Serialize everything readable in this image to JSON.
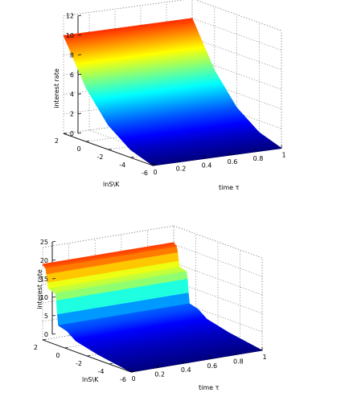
{
  "chart_data": [
    {
      "type": "surface",
      "xlabel": "time τ",
      "ylabel": "lnS\\K",
      "zlabel": "interest rate",
      "xlim": [
        0,
        1
      ],
      "ylim": [
        -6,
        2
      ],
      "zlim": [
        0,
        12
      ],
      "xticks": [
        "0",
        "0.2",
        "0.4",
        "0.6",
        "0.8",
        "1"
      ],
      "yticks": [
        "2",
        "0",
        "-2",
        "-4",
        "-6"
      ],
      "zticks": [
        "0",
        "2",
        "4",
        "6",
        "8",
        "10",
        "12"
      ],
      "colormap": "jet",
      "grid": true,
      "surface": {
        "lnS_K": [
          2,
          0,
          -2,
          -4,
          -6
        ],
        "rate_by_lnS_K": [
          10,
          5.5,
          2.5,
          0.8,
          0
        ],
        "varies_with_time": false
      }
    },
    {
      "type": "surface",
      "xlabel": "time τ",
      "ylabel": "lnS\\K",
      "zlabel": "interest rate",
      "xlim": [
        0,
        1
      ],
      "ylim": [
        -6,
        2
      ],
      "zlim": [
        0,
        25
      ],
      "xticks": [
        "0",
        "0.2",
        "0.4",
        "0.6",
        "0.8",
        "1"
      ],
      "yticks": [
        "2",
        "0",
        "-2",
        "-4",
        "-6"
      ],
      "zticks": [
        "0",
        "5",
        "10",
        "15",
        "20",
        "25"
      ],
      "colormap": "jet",
      "grid": true,
      "surface": {
        "lnS_K": [
          2,
          1.7,
          1.5,
          0.8,
          0.6,
          -0.2,
          -1,
          -3,
          -6
        ],
        "rate_by_lnS_K": [
          20.5,
          19.5,
          14.5,
          13.8,
          5.5,
          4.8,
          3.0,
          1.5,
          0
        ],
        "varies_with_time": false
      }
    }
  ]
}
